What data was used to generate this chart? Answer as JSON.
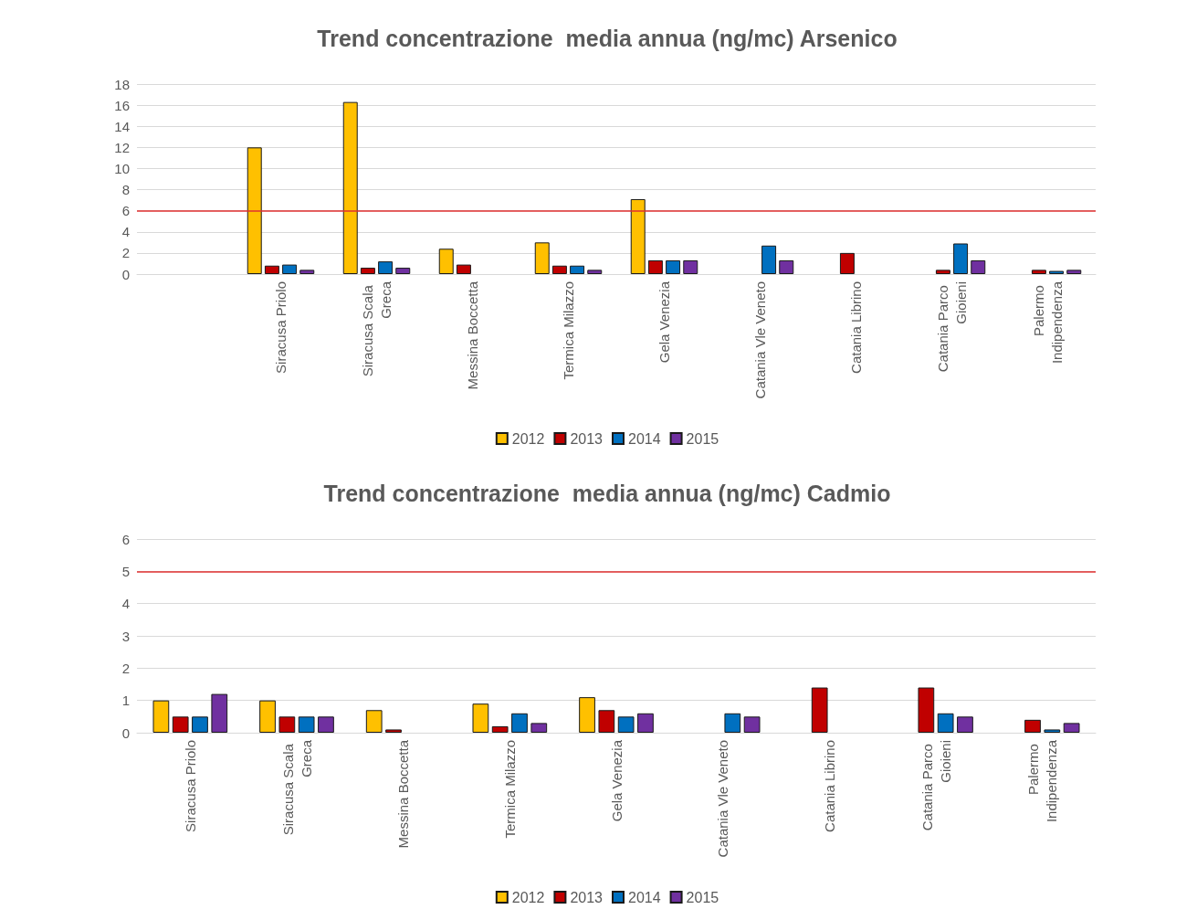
{
  "chart_data": [
    {
      "type": "bar",
      "title": "Trend concentrazione  media annua (ng/mc) Arsenico",
      "categories": [
        null,
        "Siracusa Priolo",
        "Siracusa Scala Greca",
        "Messina Boccetta",
        "Termica Milazzo",
        "Gela Venezia",
        "Catania Vle Veneto",
        "Catania Librino",
        "Catania Parco Gioieni",
        "Palermo Indipendenza"
      ],
      "series": [
        {
          "name": "2012",
          "color": "#ffc000",
          "values": [
            null,
            12.0,
            16.3,
            2.4,
            3.0,
            7.1,
            null,
            null,
            null,
            null
          ]
        },
        {
          "name": "2013",
          "color": "#c00000",
          "values": [
            null,
            0.8,
            0.6,
            0.9,
            0.8,
            1.3,
            null,
            2.0,
            0.4,
            0.4
          ]
        },
        {
          "name": "2014",
          "color": "#0070c0",
          "values": [
            null,
            0.9,
            1.2,
            null,
            0.8,
            1.3,
            2.7,
            null,
            2.9,
            0.3
          ]
        },
        {
          "name": "2015",
          "color": "#7030a0",
          "values": [
            null,
            0.4,
            0.6,
            null,
            0.4,
            1.3,
            1.3,
            null,
            1.3,
            0.4
          ]
        }
      ],
      "ylim": [
        0,
        18
      ],
      "yticks": [
        0,
        2,
        4,
        6,
        8,
        10,
        12,
        14,
        16,
        18
      ],
      "ref_lines": [
        {
          "axis": "y",
          "value": 6,
          "color": "#e03030"
        }
      ],
      "grid": "y",
      "legend": "bottom"
    },
    {
      "type": "bar",
      "title": "Trend concentrazione  media annua (ng/mc) Cadmio",
      "categories": [
        "Siracusa Priolo",
        "Siracusa Scala Greca",
        "Messina Boccetta",
        "Termica Milazzo",
        "Gela Venezia",
        "Catania Vle Veneto",
        "Catania Librino",
        "Catania Parco Gioieni",
        "Palermo Indipendenza"
      ],
      "series": [
        {
          "name": "2012",
          "color": "#ffc000",
          "values": [
            1.0,
            1.0,
            0.7,
            0.9,
            1.1,
            null,
            null,
            null,
            null
          ]
        },
        {
          "name": "2013",
          "color": "#c00000",
          "values": [
            0.5,
            0.5,
            0.1,
            0.2,
            0.7,
            null,
            1.4,
            1.4,
            0.4
          ]
        },
        {
          "name": "2014",
          "color": "#0070c0",
          "values": [
            0.5,
            0.5,
            null,
            0.6,
            0.5,
            0.6,
            null,
            0.6,
            0.1
          ]
        },
        {
          "name": "2015",
          "color": "#7030a0",
          "values": [
            1.2,
            0.5,
            null,
            0.3,
            0.6,
            0.5,
            null,
            0.5,
            0.3
          ]
        }
      ],
      "ylim": [
        0,
        6
      ],
      "yticks": [
        0,
        1,
        2,
        3,
        4,
        5,
        6
      ],
      "ref_lines": [
        {
          "axis": "y",
          "value": 5,
          "color": "#e03030"
        }
      ],
      "grid": "y",
      "legend": "bottom"
    }
  ]
}
